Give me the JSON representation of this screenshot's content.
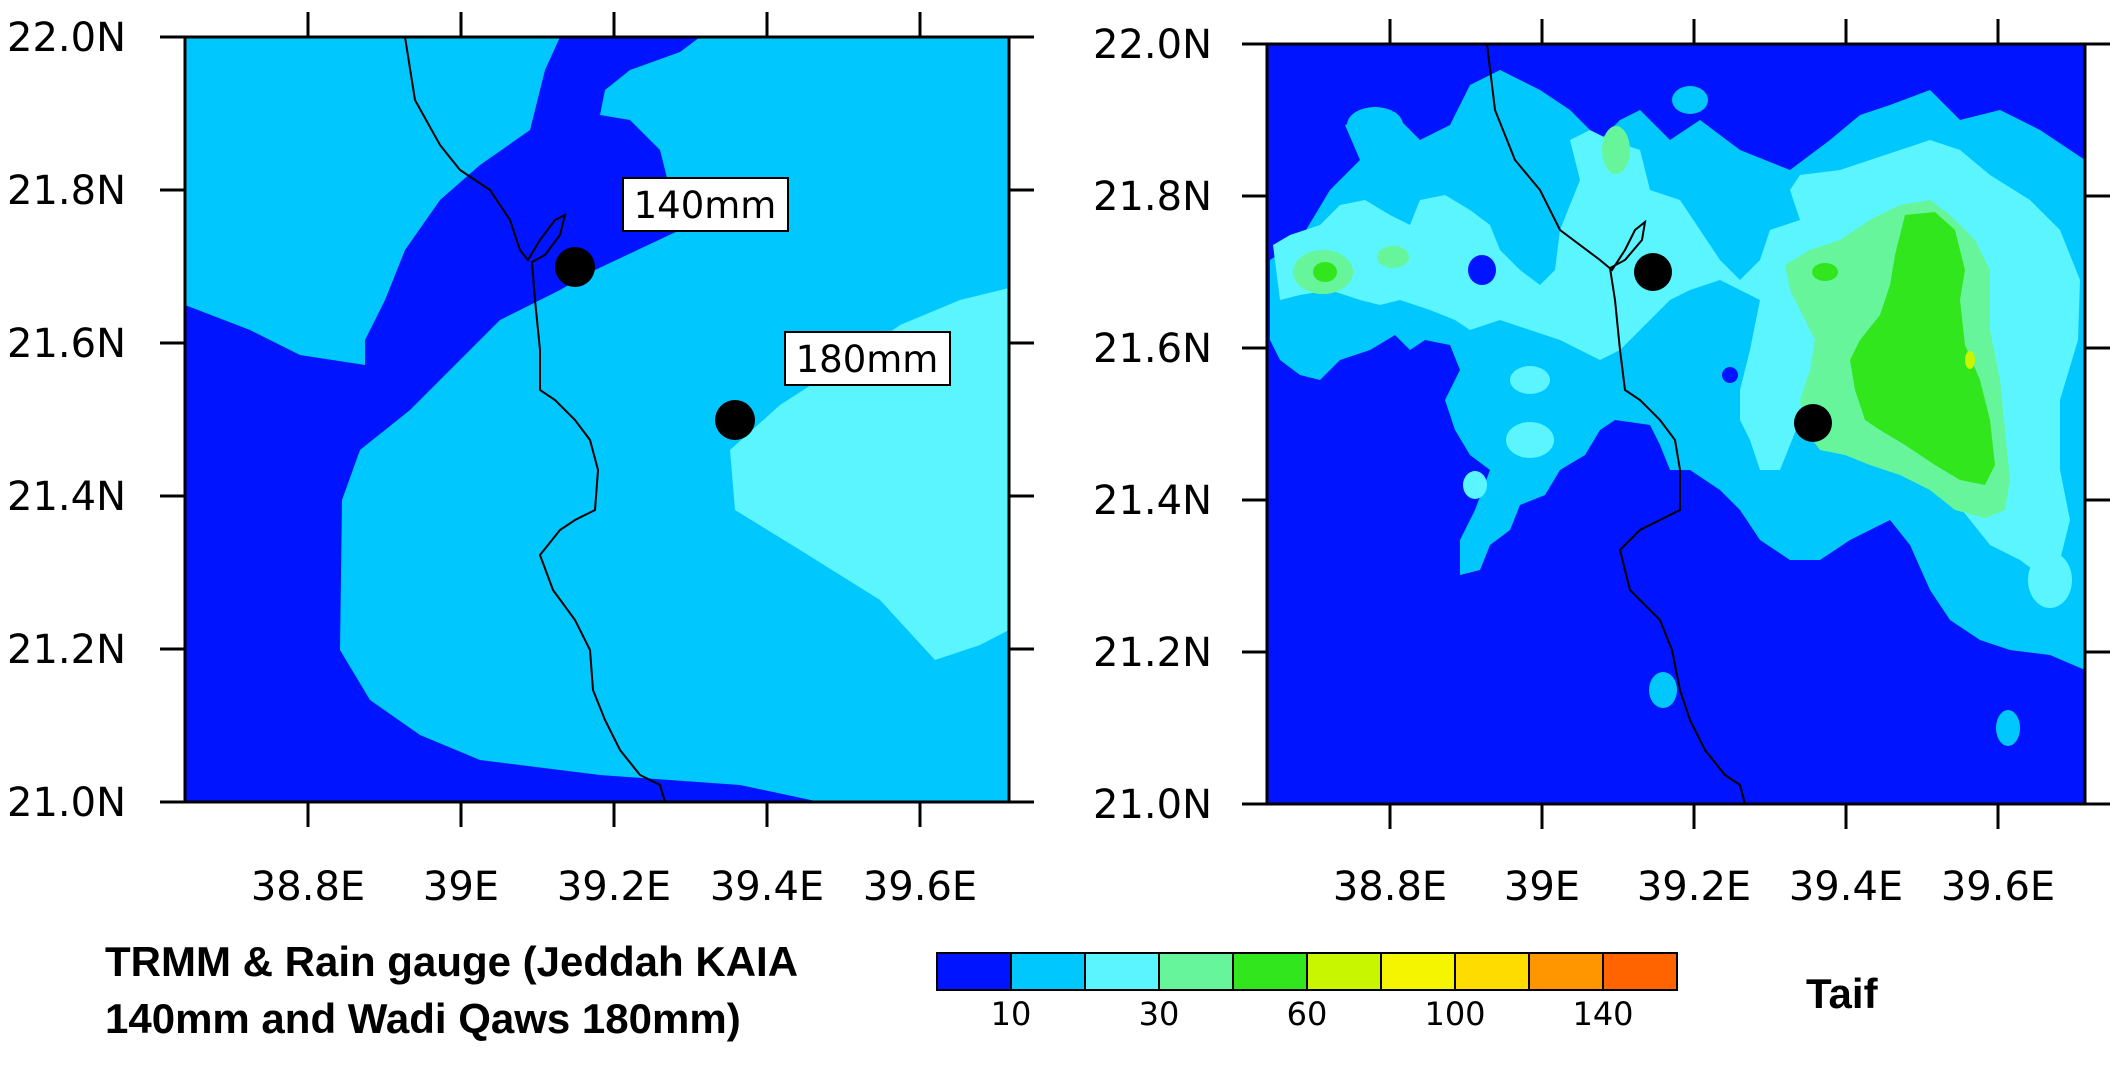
{
  "maps": [
    {
      "id": "left",
      "lat_labels": [
        "22.0N",
        "21.8N",
        "21.6N",
        "21.4N",
        "21.2N",
        "21.0N"
      ],
      "lon_labels": [
        "38.8E",
        "39E",
        "39.2E",
        "39.4E",
        "39.6E"
      ],
      "annotations": [
        "140mm",
        "180mm"
      ]
    },
    {
      "id": "right",
      "lat_labels": [
        "22.0N",
        "21.8N",
        "21.6N",
        "21.4N",
        "21.2N",
        "21.0N"
      ],
      "lon_labels": [
        "38.8E",
        "39E",
        "39.2E",
        "39.4E",
        "39.6E"
      ]
    }
  ],
  "caption": {
    "line1": "TRMM & Rain gauge (Jeddah KAIA",
    "line2": "140mm and Wadi Qaws 180mm)"
  },
  "colorbar": {
    "colors": [
      "#0014ff",
      "#00c8ff",
      "#5af5ff",
      "#66f59a",
      "#32e61e",
      "#c8f500",
      "#f5f500",
      "#ffdc00",
      "#ff9600",
      "#ff6400"
    ],
    "labels": [
      "10",
      "30",
      "60",
      "100",
      "140"
    ]
  },
  "right_label": "Taif",
  "gauges": [
    {
      "name": "Jeddah KAIA",
      "lon": 39.15,
      "lat": 21.7,
      "rain_mm": 140
    },
    {
      "name": "Wadi Qaws",
      "lon": 39.36,
      "lat": 21.5,
      "rain_mm": 180
    }
  ]
}
